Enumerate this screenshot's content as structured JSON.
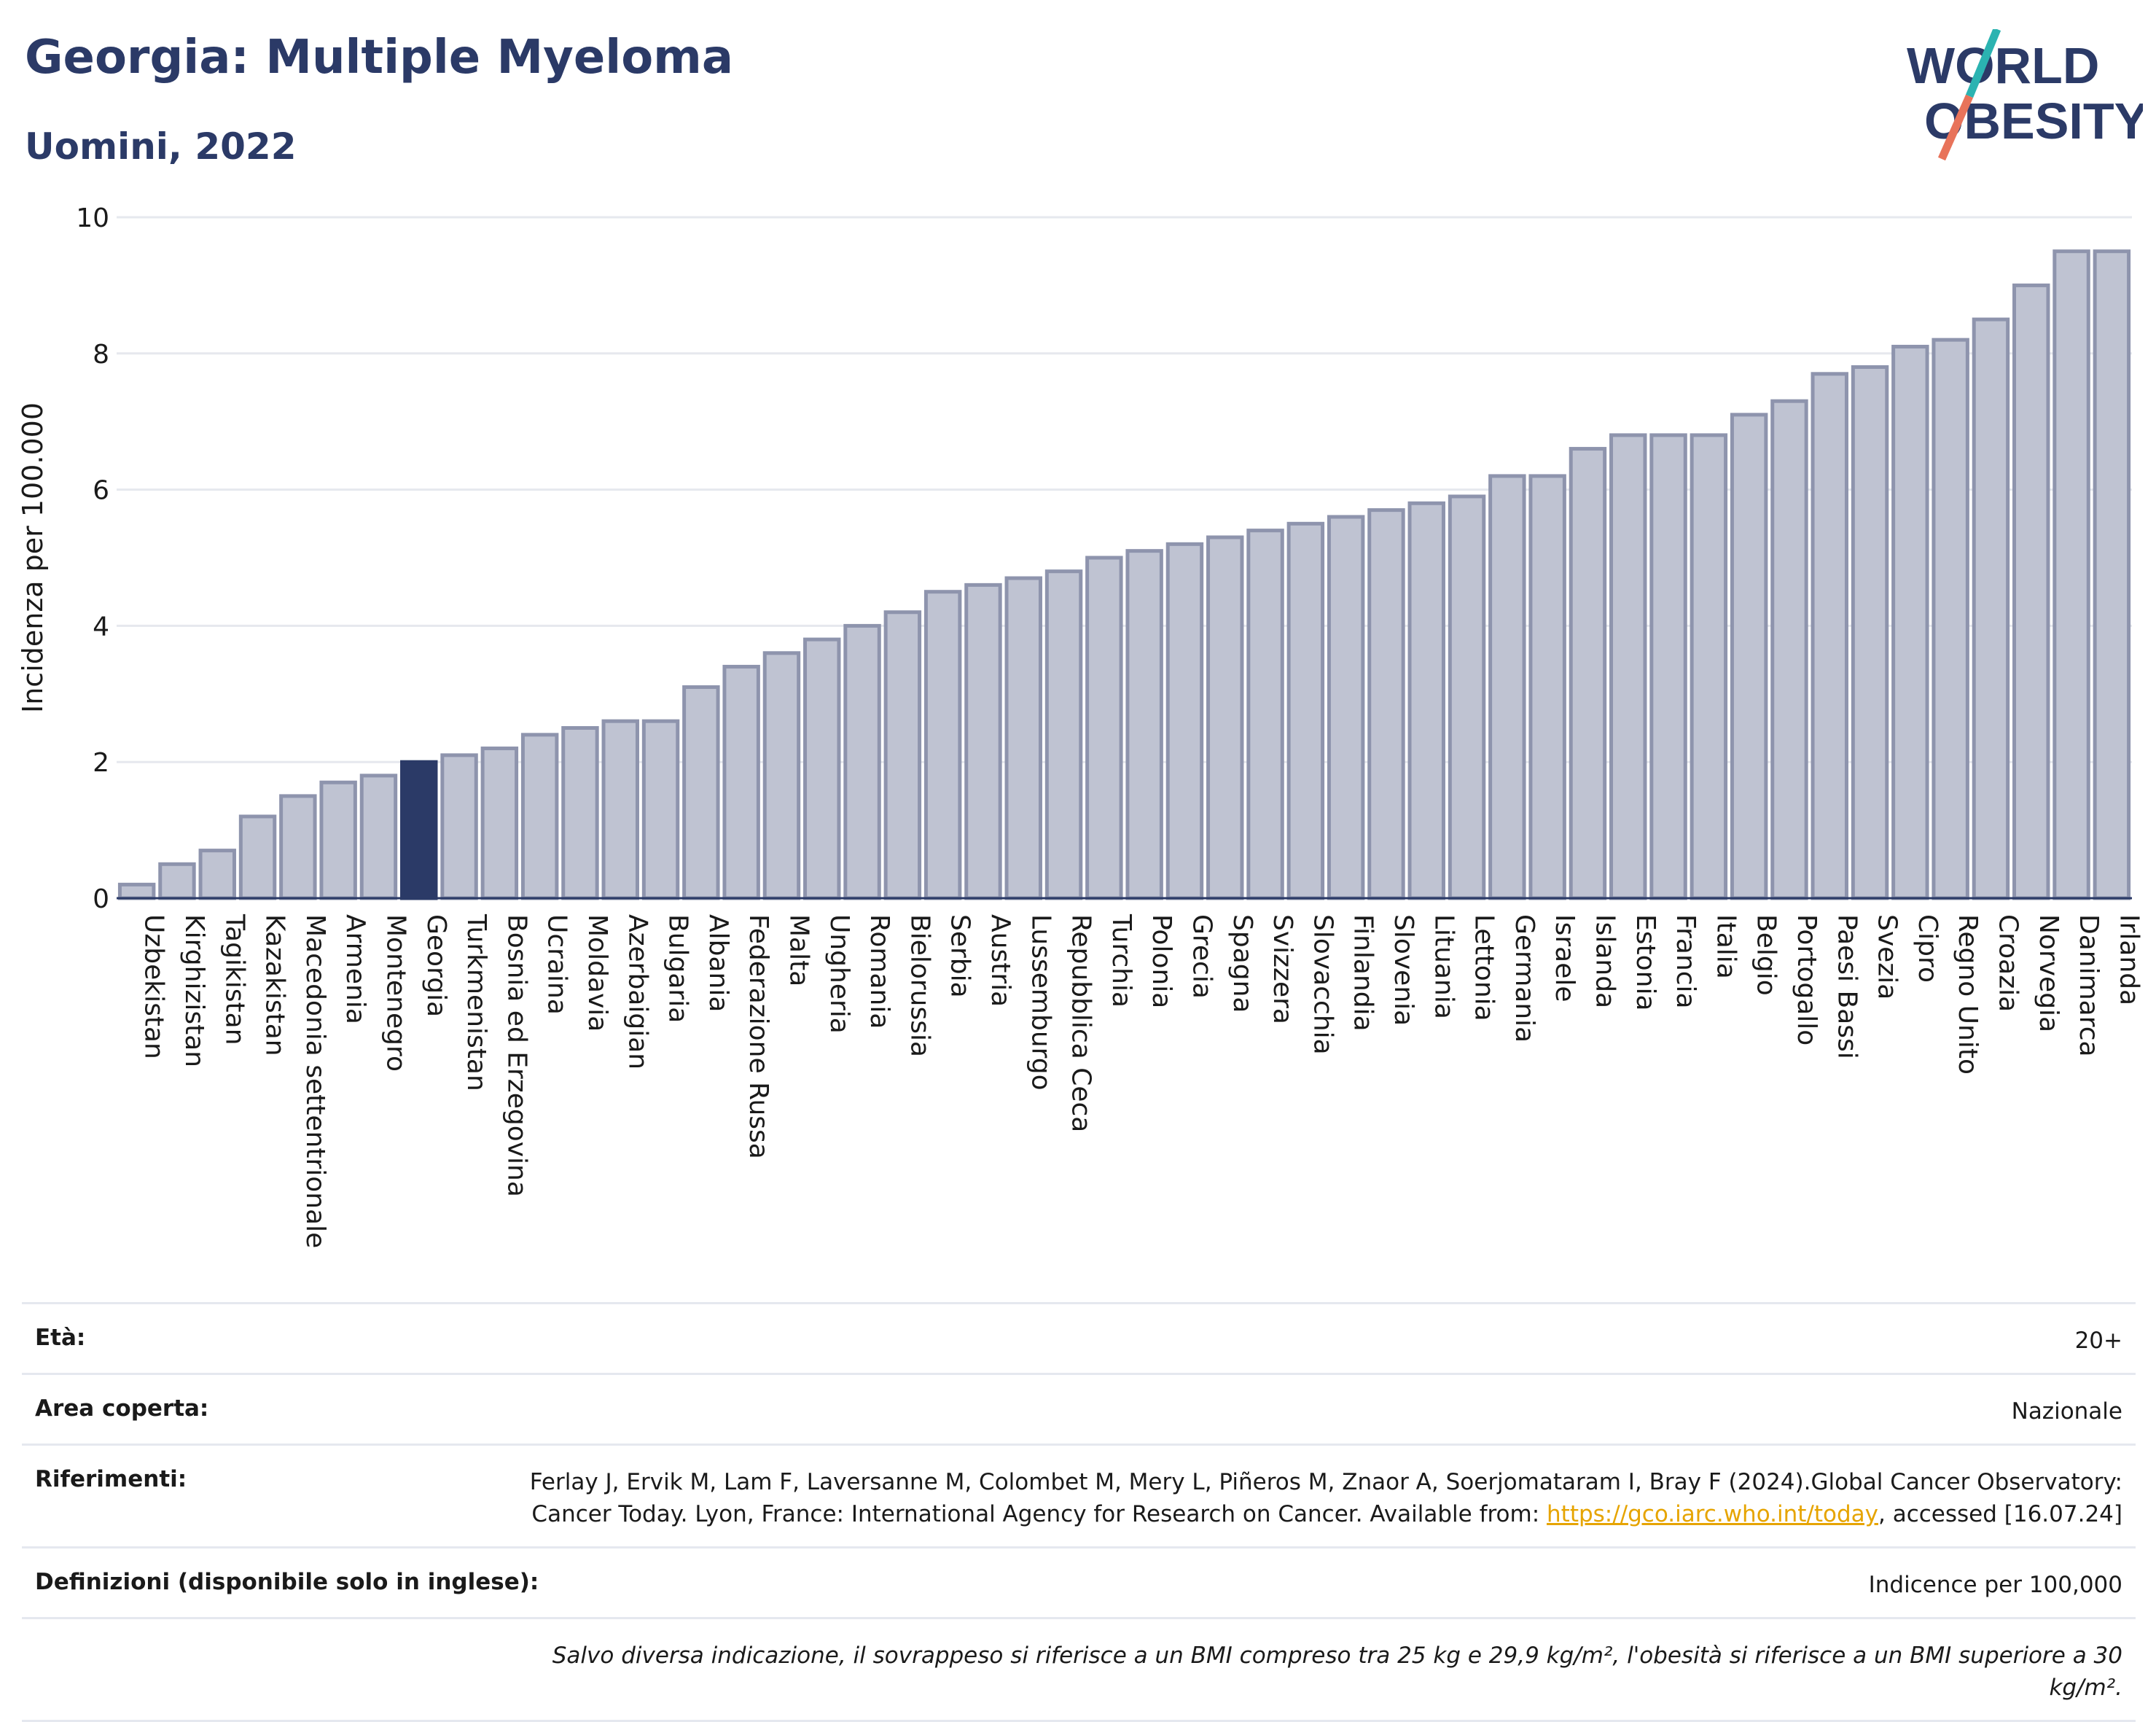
{
  "title": "Georgia: Multiple Myeloma",
  "subtitle": "Uomini, 2022",
  "logo": {
    "line1": "WORLD",
    "line2": "OBESITY"
  },
  "colors": {
    "bar": "#bfc3d2",
    "bar_stroke": "#8e94ad",
    "highlight": "#2b3a67",
    "title": "#2b3a67",
    "logo_slash_top": "#2bb3b1",
    "logo_slash_bottom": "#e8735a"
  },
  "chart_data": {
    "type": "bar",
    "ylabel": "Incidenza per 100.000",
    "xlabel": "",
    "ylim": [
      0,
      10
    ],
    "yticks": [
      0,
      2,
      4,
      6,
      8,
      10
    ],
    "grid": true,
    "highlight": "Georgia",
    "categories": [
      "Uzbekistan",
      "Kirghizistan",
      "Tagikistan",
      "Kazakistan",
      "Macedonia settentrionale",
      "Armenia",
      "Montenegro",
      "Georgia",
      "Turkmenistan",
      "Bosnia ed Erzegovina",
      "Ucraina",
      "Moldavia",
      "Azerbaigian",
      "Bulgaria",
      "Albania",
      "Federazione Russa",
      "Malta",
      "Ungheria",
      "Romania",
      "Bielorussia",
      "Serbia",
      "Austria",
      "Lussemburgo",
      "Repubblica Ceca",
      "Turchia",
      "Polonia",
      "Grecia",
      "Spagna",
      "Svizzera",
      "Slovacchia",
      "Finlandia",
      "Slovenia",
      "Lituania",
      "Lettonia",
      "Germania",
      "Israele",
      "Islanda",
      "Estonia",
      "Francia",
      "Italia",
      "Belgio",
      "Portogallo",
      "Paesi Bassi",
      "Svezia",
      "Cipro",
      "Regno Unito",
      "Croazia",
      "Norvegia",
      "Danimarca",
      "Irlanda"
    ],
    "values": [
      0.2,
      0.5,
      0.7,
      1.2,
      1.5,
      1.7,
      1.8,
      2.0,
      2.1,
      2.2,
      2.4,
      2.5,
      2.6,
      2.6,
      3.1,
      3.4,
      3.6,
      3.8,
      4.0,
      4.2,
      4.5,
      4.6,
      4.7,
      4.8,
      5.0,
      5.1,
      5.2,
      5.3,
      5.4,
      5.5,
      5.6,
      5.7,
      5.8,
      5.9,
      6.2,
      6.2,
      6.6,
      6.8,
      6.8,
      6.8,
      7.1,
      7.3,
      7.7,
      7.8,
      8.1,
      8.2,
      8.5,
      9.0,
      9.5,
      9.5
    ]
  },
  "info": {
    "age": {
      "label": "Età:",
      "value": "20+"
    },
    "area": {
      "label": "Area coperta:",
      "value": "Nazionale"
    },
    "refs": {
      "label": "Riferimenti:",
      "text1": "Ferlay J, Ervik M, Lam F, Laversanne M, Colombet M, Mery L, Piñeros M, Znaor A, Soerjomataram I, Bray F (2024).Global Cancer Observatory: Cancer Today. Lyon, France: International Agency for Research on Cancer. Available from: ",
      "link": "https://gco.iarc.who.int/today",
      "text2": ", accessed [16.07.24]"
    },
    "defs": {
      "label": "Definizioni (disponibile solo in inglese):",
      "value": "Indicence per 100,000"
    },
    "note": "Salvo diversa indicazione, il sovrappeso si riferisce a un BMI compreso tra 25 kg e 29,9 kg/m², l'obesità si riferisce a un BMI superiore a 30 kg/m²."
  }
}
